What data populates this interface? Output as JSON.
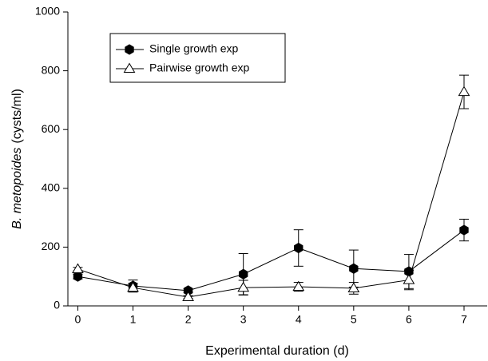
{
  "chart_data": {
    "type": "line",
    "x_label": "Experimental duration (d)",
    "y_label_italic": "B. metopoides",
    "y_label_rest": "(cysts/ml)",
    "x": [
      0,
      1,
      2,
      3,
      4,
      5,
      6,
      7
    ],
    "series": [
      {
        "name": "Single growth exp",
        "color": "#000000",
        "marker": "hexagon",
        "filled": true,
        "values": [
          100,
          68,
          52,
          108,
          197,
          127,
          117,
          258
        ],
        "errors": [
          8,
          20,
          6,
          70,
          62,
          63,
          58,
          37
        ]
      },
      {
        "name": "Pairwise growth exp",
        "color": "#000000",
        "marker": "triangle",
        "filled": false,
        "values": [
          125,
          62,
          30,
          62,
          65,
          60,
          88,
          728
        ],
        "errors": [
          6,
          15,
          5,
          25,
          15,
          20,
          33,
          57
        ]
      }
    ],
    "xlim": [
      -0.18,
      7.42
    ],
    "xticks": [
      0,
      1,
      2,
      3,
      4,
      5,
      6,
      7
    ],
    "ylim": [
      0,
      1000
    ],
    "yticks": [
      0,
      200,
      400,
      600,
      800,
      1000
    ],
    "legend": "upper left"
  }
}
